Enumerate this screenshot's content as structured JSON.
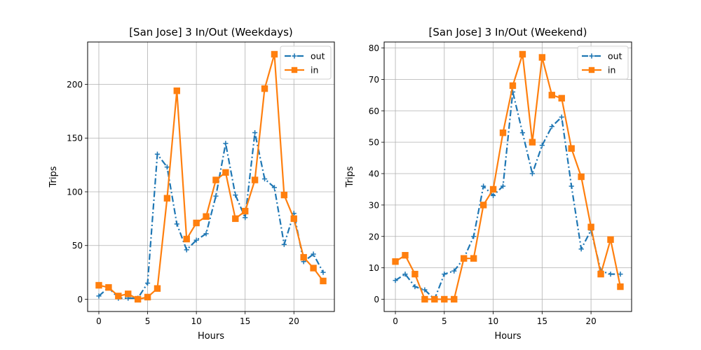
{
  "chart_data": [
    {
      "type": "line",
      "title": "[San Jose] 3 In/Out (Weekdays)",
      "xlabel": "Hours",
      "ylabel": "Trips",
      "xlim": [
        -1.15,
        24.15
      ],
      "ylim": [
        -11.4,
        239.4
      ],
      "xticks": [
        0,
        5,
        10,
        15,
        20
      ],
      "yticks": [
        0,
        50,
        100,
        150,
        200
      ],
      "grid": true,
      "legend_position": "top-right",
      "x": [
        0,
        1,
        2,
        3,
        4,
        5,
        6,
        7,
        8,
        9,
        10,
        11,
        12,
        13,
        14,
        15,
        16,
        17,
        18,
        19,
        20,
        21,
        22,
        23
      ],
      "series": [
        {
          "name": "out",
          "color": "#1f77b4",
          "style": "dashdot",
          "marker": "plus",
          "values": [
            3,
            11,
            1,
            1,
            1,
            15,
            135,
            123,
            70,
            46,
            55,
            61,
            96,
            145,
            97,
            76,
            155,
            112,
            104,
            51,
            80,
            35,
            42,
            25
          ]
        },
        {
          "name": "in",
          "color": "#ff7f0e",
          "style": "solid",
          "marker": "square",
          "values": [
            13,
            11,
            3,
            5,
            0,
            2,
            10,
            94,
            194,
            56,
            71,
            77,
            111,
            118,
            75,
            82,
            111,
            196,
            228,
            97,
            75,
            39,
            29,
            17
          ]
        }
      ]
    },
    {
      "type": "line",
      "title": "[San Jose] 3 In/Out (Weekend)",
      "xlabel": "Hours",
      "ylabel": "Trips",
      "xlim": [
        -1.15,
        24.15
      ],
      "ylim": [
        -3.9,
        81.9
      ],
      "xticks": [
        0,
        5,
        10,
        15,
        20
      ],
      "yticks": [
        0,
        10,
        20,
        30,
        40,
        50,
        60,
        70,
        80
      ],
      "grid": true,
      "legend_position": "top-right",
      "x": [
        0,
        1,
        2,
        3,
        4,
        5,
        6,
        7,
        8,
        9,
        10,
        11,
        12,
        13,
        14,
        15,
        16,
        17,
        18,
        19,
        20,
        21,
        22,
        23
      ],
      "series": [
        {
          "name": "out",
          "color": "#1f77b4",
          "style": "dashdot",
          "marker": "plus",
          "values": [
            6,
            8,
            4,
            3,
            0,
            8,
            9,
            13,
            20,
            36,
            33,
            36,
            66,
            53,
            40,
            49,
            55,
            58,
            36,
            16,
            22,
            9,
            8,
            8
          ]
        },
        {
          "name": "in",
          "color": "#ff7f0e",
          "style": "solid",
          "marker": "square",
          "values": [
            12,
            14,
            8,
            0,
            0,
            0,
            0,
            13,
            13,
            30,
            35,
            53,
            68,
            78,
            50,
            77,
            65,
            64,
            48,
            39,
            23,
            8,
            19,
            4
          ]
        }
      ]
    }
  ]
}
